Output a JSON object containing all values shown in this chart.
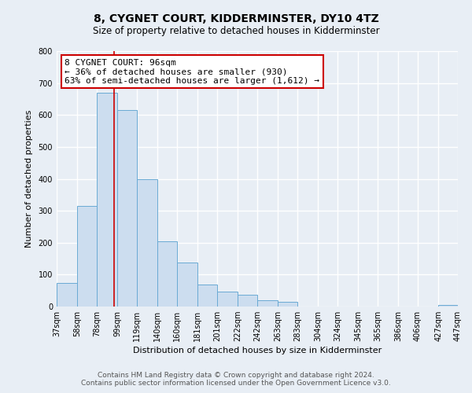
{
  "title": "8, CYGNET COURT, KIDDERMINSTER, DY10 4TZ",
  "subtitle": "Size of property relative to detached houses in Kidderminster",
  "xlabel": "Distribution of detached houses by size in Kidderminster",
  "ylabel": "Number of detached properties",
  "bar_edges": [
    37,
    58,
    78,
    99,
    119,
    140,
    160,
    181,
    201,
    222,
    242,
    263,
    283,
    304,
    324,
    345,
    365,
    386,
    406,
    427,
    447
  ],
  "bar_heights": [
    75,
    315,
    670,
    615,
    400,
    205,
    137,
    70,
    47,
    37,
    20,
    15,
    0,
    0,
    0,
    0,
    0,
    0,
    0,
    5
  ],
  "bar_color": "#ccddef",
  "bar_edge_color": "#6aaad4",
  "property_line_x": 96,
  "annotation_title": "8 CYGNET COURT: 96sqm",
  "annotation_line1": "← 36% of detached houses are smaller (930)",
  "annotation_line2": "63% of semi-detached houses are larger (1,612) →",
  "annotation_box_color": "#ffffff",
  "annotation_box_edge_color": "#cc0000",
  "line_color": "#cc0000",
  "ylim": [
    0,
    800
  ],
  "yticks": [
    0,
    100,
    200,
    300,
    400,
    500,
    600,
    700,
    800
  ],
  "footer_line1": "Contains HM Land Registry data © Crown copyright and database right 2024.",
  "footer_line2": "Contains public sector information licensed under the Open Government Licence v3.0.",
  "bg_color": "#e8eef5",
  "plot_bg_color": "#e8eef5",
  "title_fontsize": 10,
  "subtitle_fontsize": 8.5,
  "xlabel_fontsize": 8,
  "ylabel_fontsize": 8,
  "tick_fontsize": 7,
  "annotation_fontsize": 8
}
